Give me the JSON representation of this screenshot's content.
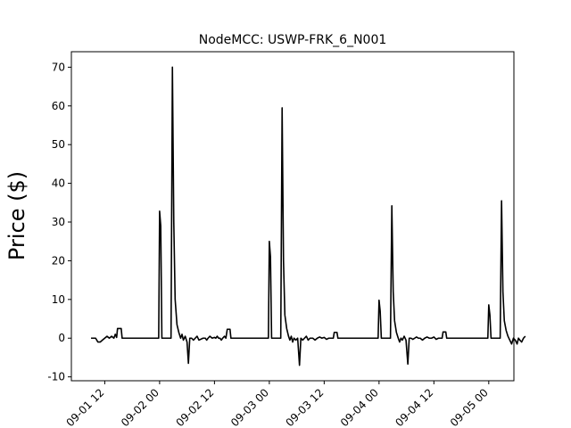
{
  "chart_data": {
    "type": "line",
    "title": "NodeMCC: USWP-FRK_6_N001",
    "xlabel": "",
    "ylabel": "Price ($)",
    "ylim": [
      -11,
      74
    ],
    "yticks": [
      -10,
      0,
      10,
      20,
      30,
      40,
      50,
      60,
      70
    ],
    "xticks": [
      "09-01 12",
      "09-02 00",
      "09-02 12",
      "09-03 00",
      "09-03 12",
      "09-04 00",
      "09-04 12",
      "09-05 00"
    ],
    "xtick_hours": [
      12,
      24,
      36,
      48,
      60,
      72,
      84,
      96
    ],
    "xlim_hours": [
      4.7,
      101.5
    ],
    "x_unit": "hours after 09-01 00",
    "grid": false,
    "line_color": "#000000",
    "series": [
      {
        "name": "",
        "points": [
          [
            9.0,
            0.0
          ],
          [
            10.0,
            0.0
          ],
          [
            10.5,
            -1.0
          ],
          [
            11.0,
            -1.0
          ],
          [
            11.5,
            -0.5
          ],
          [
            12.0,
            0.0
          ],
          [
            12.5,
            0.5
          ],
          [
            13.0,
            0.0
          ],
          [
            13.5,
            0.5
          ],
          [
            14.0,
            0.0
          ],
          [
            14.3,
            1.0
          ],
          [
            14.6,
            0.2
          ],
          [
            14.8,
            2.5
          ],
          [
            15.6,
            2.5
          ],
          [
            15.8,
            0.0
          ],
          [
            20.0,
            0.0
          ],
          [
            23.8,
            0.0
          ],
          [
            24.0,
            32.8
          ],
          [
            24.25,
            29.0
          ],
          [
            24.5,
            0.0
          ],
          [
            26.5,
            0.0
          ],
          [
            26.8,
            70.0
          ],
          [
            27.1,
            30.0
          ],
          [
            27.4,
            10.0
          ],
          [
            27.8,
            3.5
          ],
          [
            28.2,
            1.5
          ],
          [
            28.6,
            0.0
          ],
          [
            28.9,
            1.0
          ],
          [
            29.2,
            -0.5
          ],
          [
            29.6,
            0.5
          ],
          [
            30.0,
            -1.0
          ],
          [
            30.3,
            -6.5
          ],
          [
            30.6,
            0.0
          ],
          [
            31.0,
            0.0
          ],
          [
            31.4,
            -0.5
          ],
          [
            31.8,
            0.0
          ],
          [
            32.2,
            0.5
          ],
          [
            32.6,
            -0.5
          ],
          [
            33.5,
            0.0
          ],
          [
            34.0,
            0.0
          ],
          [
            34.3,
            -0.5
          ],
          [
            34.6,
            0.0
          ],
          [
            35.0,
            0.5
          ],
          [
            35.5,
            0.0
          ],
          [
            36.0,
            0.2
          ],
          [
            36.3,
            0.0
          ],
          [
            36.6,
            0.5
          ],
          [
            36.9,
            0.0
          ],
          [
            37.2,
            0.0
          ],
          [
            37.5,
            -0.5
          ],
          [
            37.8,
            0.0
          ],
          [
            38.2,
            0.5
          ],
          [
            38.5,
            0.0
          ],
          [
            38.8,
            2.3
          ],
          [
            39.4,
            2.3
          ],
          [
            39.6,
            0.0
          ],
          [
            44.0,
            0.0
          ],
          [
            47.8,
            0.0
          ],
          [
            48.0,
            25.0
          ],
          [
            48.25,
            21.0
          ],
          [
            48.5,
            0.0
          ],
          [
            50.5,
            0.0
          ],
          [
            50.8,
            59.5
          ],
          [
            51.1,
            20.0
          ],
          [
            51.4,
            6.0
          ],
          [
            51.8,
            2.5
          ],
          [
            52.2,
            0.5
          ],
          [
            52.5,
            -0.5
          ],
          [
            52.8,
            0.5
          ],
          [
            53.1,
            -1.0
          ],
          [
            53.4,
            0.0
          ],
          [
            53.8,
            -0.5
          ],
          [
            54.2,
            0.0
          ],
          [
            54.6,
            -7.0
          ],
          [
            54.9,
            0.0
          ],
          [
            55.3,
            -0.5
          ],
          [
            55.7,
            0.0
          ],
          [
            56.1,
            0.5
          ],
          [
            56.5,
            -0.5
          ],
          [
            56.9,
            0.0
          ],
          [
            57.5,
            0.0
          ],
          [
            58.0,
            -0.5
          ],
          [
            58.5,
            0.0
          ],
          [
            59.0,
            0.3
          ],
          [
            59.5,
            0.0
          ],
          [
            60.0,
            0.2
          ],
          [
            60.5,
            -0.3
          ],
          [
            61.0,
            0.0
          ],
          [
            61.4,
            0.0
          ],
          [
            62.0,
            0.0
          ],
          [
            62.2,
            1.5
          ],
          [
            62.8,
            1.5
          ],
          [
            63.0,
            0.0
          ],
          [
            68.0,
            0.0
          ],
          [
            71.8,
            0.0
          ],
          [
            72.0,
            9.8
          ],
          [
            72.25,
            7.0
          ],
          [
            72.5,
            0.0
          ],
          [
            74.5,
            0.0
          ],
          [
            74.8,
            34.2
          ],
          [
            75.1,
            12.0
          ],
          [
            75.4,
            4.5
          ],
          [
            75.8,
            1.5
          ],
          [
            76.2,
            0.0
          ],
          [
            76.5,
            -1.0
          ],
          [
            76.8,
            0.0
          ],
          [
            77.1,
            -0.5
          ],
          [
            77.5,
            0.5
          ],
          [
            77.9,
            -0.5
          ],
          [
            78.3,
            -6.7
          ],
          [
            78.6,
            0.0
          ],
          [
            79.0,
            0.0
          ],
          [
            79.4,
            -0.3
          ],
          [
            79.8,
            0.0
          ],
          [
            80.2,
            0.3
          ],
          [
            80.6,
            0.0
          ],
          [
            81.0,
            0.0
          ],
          [
            81.5,
            -0.5
          ],
          [
            82.0,
            0.0
          ],
          [
            82.5,
            0.3
          ],
          [
            83.0,
            0.0
          ],
          [
            83.5,
            0.0
          ],
          [
            84.0,
            0.3
          ],
          [
            84.5,
            -0.3
          ],
          [
            85.0,
            0.0
          ],
          [
            85.4,
            0.0
          ],
          [
            85.8,
            0.0
          ],
          [
            86.0,
            1.6
          ],
          [
            86.6,
            1.6
          ],
          [
            86.8,
            0.0
          ],
          [
            92.0,
            0.0
          ],
          [
            95.8,
            0.0
          ],
          [
            96.0,
            8.6
          ],
          [
            96.25,
            6.0
          ],
          [
            96.5,
            0.0
          ],
          [
            98.5,
            0.0
          ],
          [
            98.8,
            35.5
          ],
          [
            99.1,
            12.0
          ],
          [
            99.4,
            4.5
          ],
          [
            99.8,
            2.0
          ],
          [
            100.2,
            0.5
          ],
          [
            100.6,
            -0.5
          ],
          [
            101.0,
            -1.5
          ],
          [
            101.4,
            0.0
          ],
          [
            101.8,
            -0.5
          ],
          [
            102.2,
            -1.5
          ],
          [
            102.5,
            0.0
          ],
          [
            102.8,
            -0.5
          ],
          [
            103.2,
            -1.0
          ],
          [
            103.6,
            0.0
          ],
          [
            104.0,
            0.5
          ]
        ]
      }
    ]
  }
}
